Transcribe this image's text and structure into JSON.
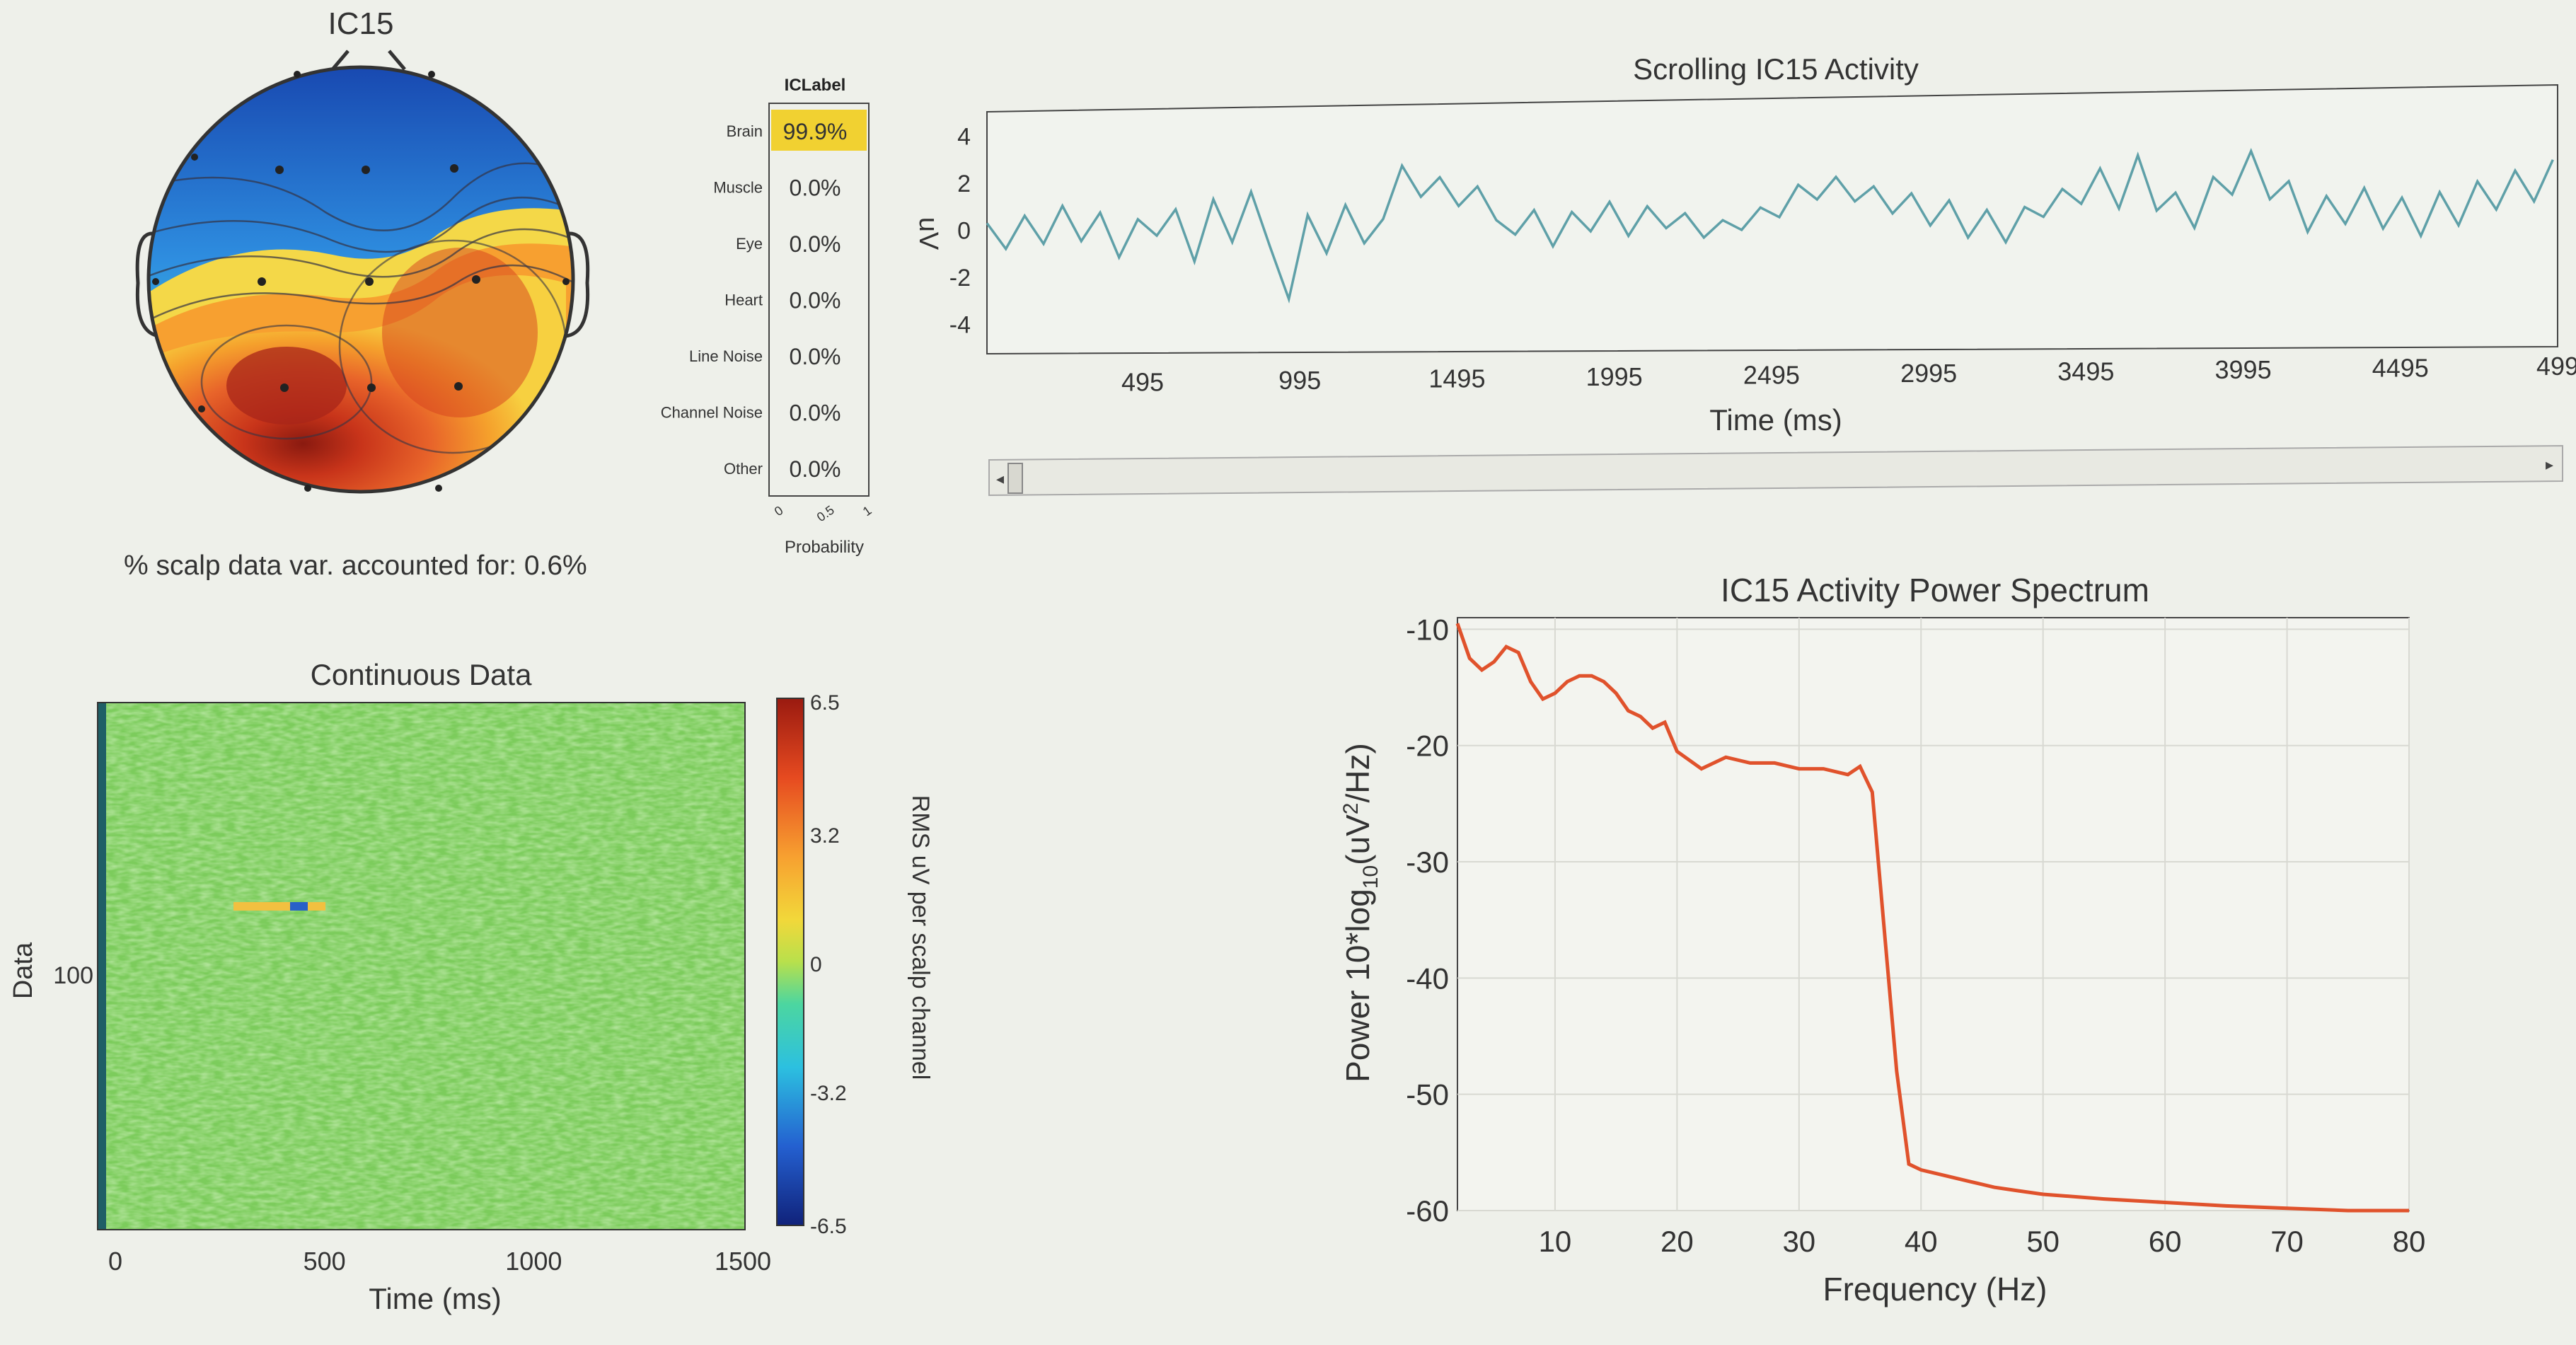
{
  "topo": {
    "title": "IC15",
    "variance_text": "% scalp data var. accounted for: 0.6%"
  },
  "iclabel": {
    "title": "ICLabel",
    "xlabel": "Probability",
    "xticks": [
      "0",
      "0.5",
      "1"
    ],
    "rows": [
      {
        "label": "Brain",
        "value": "99.9%",
        "prob": 0.999
      },
      {
        "label": "Muscle",
        "value": "0.0%",
        "prob": 0
      },
      {
        "label": "Eye",
        "value": "0.0%",
        "prob": 0
      },
      {
        "label": "Heart",
        "value": "0.0%",
        "prob": 0
      },
      {
        "label": "Line Noise",
        "value": "0.0%",
        "prob": 0
      },
      {
        "label": "Channel Noise",
        "value": "0.0%",
        "prob": 0
      },
      {
        "label": "Other",
        "value": "0.0%",
        "prob": 0
      }
    ],
    "highlight_color": "#f1d131"
  },
  "chart_data": [
    {
      "id": "scrolling",
      "type": "line",
      "title": "Scrolling IC15 Activity",
      "xlabel": "Time (ms)",
      "ylabel": "uV",
      "xlim": [
        0,
        4995
      ],
      "ylim": [
        -4.5,
        4.5
      ],
      "xticks": [
        "495",
        "995",
        "1495",
        "1995",
        "2495",
        "2995",
        "3495",
        "3995",
        "4495",
        "499"
      ],
      "yticks": [
        "4",
        "2",
        "0",
        "-2",
        "-4"
      ],
      "color": "#5fa0a8",
      "series": [
        {
          "x": [
            0,
            60,
            120,
            180,
            240,
            300,
            360,
            420,
            480,
            540,
            600,
            660,
            720,
            780,
            840,
            900,
            960,
            1020,
            1080,
            1140,
            1200,
            1260,
            1320,
            1380,
            1440,
            1500,
            1560,
            1620,
            1680,
            1740,
            1800,
            1860,
            1920,
            1980,
            2040,
            2100,
            2160,
            2220,
            2280,
            2340,
            2400,
            2460,
            2520,
            2580,
            2640,
            2700,
            2760,
            2820,
            2880,
            2940,
            3000,
            3060,
            3120,
            3180,
            3240,
            3300,
            3360,
            3420,
            3480,
            3540,
            3600,
            3660,
            3720,
            3780,
            3840,
            3900,
            3960,
            4020,
            4080,
            4140,
            4200,
            4260,
            4320,
            4380,
            4440,
            4500,
            4560,
            4620,
            4680,
            4740,
            4800,
            4860,
            4920,
            4980
          ],
          "y": [
            0.3,
            -0.8,
            0.6,
            -0.6,
            1.0,
            -0.5,
            0.7,
            -1.2,
            0.4,
            -0.3,
            0.8,
            -1.4,
            1.2,
            -0.6,
            1.5,
            -0.8,
            -3.0,
            0.5,
            -1.1,
            0.9,
            -0.7,
            0.3,
            2.5,
            1.2,
            2.0,
            0.8,
            1.6,
            0.2,
            -0.4,
            0.6,
            -0.9,
            0.5,
            -0.3,
            0.9,
            -0.5,
            0.7,
            -0.2,
            0.4,
            -0.6,
            0.1,
            -0.3,
            0.6,
            0.2,
            1.5,
            0.9,
            1.8,
            0.8,
            1.4,
            0.3,
            1.1,
            -0.2,
            0.8,
            -0.7,
            0.4,
            -0.9,
            0.5,
            0.1,
            1.2,
            0.6,
            2.0,
            0.4,
            2.5,
            0.3,
            1.0,
            -0.4,
            1.6,
            0.9,
            2.6,
            0.7,
            1.4,
            -0.6,
            0.8,
            -0.3,
            1.1,
            -0.5,
            0.7,
            -0.8,
            0.9,
            -0.4,
            1.3,
            0.2,
            1.7,
            0.5,
            2.1
          ]
        }
      ]
    },
    {
      "id": "spectrum",
      "type": "line",
      "title": "IC15 Activity Power Spectrum",
      "xlabel": "Frequency (Hz)",
      "ylabel": "Power 10*log10(uV2/Hz)",
      "xlim": [
        2,
        80
      ],
      "ylim": [
        -60,
        -9
      ],
      "xticks": [
        10,
        20,
        30,
        40,
        50,
        60,
        70,
        80
      ],
      "yticks": [
        -10,
        -20,
        -30,
        -40,
        -50,
        -60
      ],
      "grid": true,
      "color": "#e0522c",
      "series": [
        {
          "x": [
            2,
            3,
            4,
            5,
            6,
            7,
            8,
            9,
            10,
            11,
            12,
            13,
            14,
            15,
            16,
            17,
            18,
            19,
            20,
            22,
            24,
            26,
            28,
            30,
            32,
            34,
            35,
            36,
            37,
            38,
            39,
            40,
            42,
            44,
            46,
            48,
            50,
            55,
            60,
            65,
            70,
            75,
            80
          ],
          "y": [
            -9.5,
            -12.5,
            -13.5,
            -12.8,
            -11.5,
            -12.0,
            -14.5,
            -16.0,
            -15.5,
            -14.5,
            -14.0,
            -14.0,
            -14.5,
            -15.5,
            -17.0,
            -17.5,
            -18.5,
            -18.0,
            -20.5,
            -22.0,
            -21.0,
            -21.5,
            -21.5,
            -22.0,
            -22.0,
            -22.5,
            -21.8,
            -24.0,
            -36.0,
            -48.0,
            -56.0,
            -56.5,
            -57.0,
            -57.5,
            -58.0,
            -58.3,
            -58.6,
            -59.0,
            -59.3,
            -59.6,
            -59.8,
            -60.0,
            -60.0
          ]
        }
      ]
    },
    {
      "id": "erpimage",
      "type": "heatmap",
      "title": "Continuous Data",
      "xlabel": "Time (ms)",
      "ylabel": "Data",
      "xlim": [
        0,
        1500
      ],
      "xticks": [
        "0",
        "500",
        "1000",
        "1500"
      ],
      "yticks": [
        "100"
      ],
      "colorbar": {
        "label": "RMS uV per scalp channel",
        "ticks": [
          "6.5",
          "3.2",
          "0",
          "-3.2",
          "-6.5"
        ],
        "range": [
          -6.5,
          6.5
        ]
      },
      "typical_value": 0.3
    }
  ]
}
